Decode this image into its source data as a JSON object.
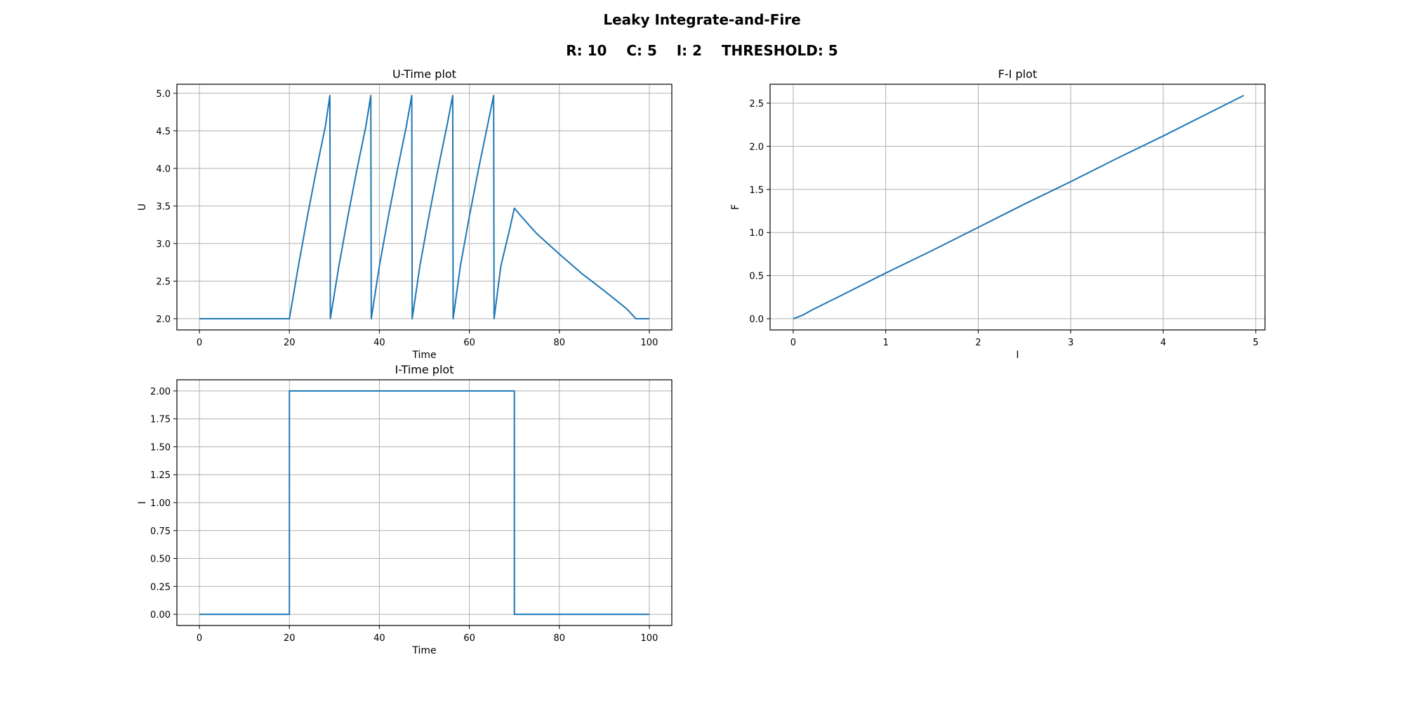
{
  "figure": {
    "title": "Leaky Integrate-and-Fire",
    "subtitle": "R: 10    C: 5    I: 2    THRESHOLD: 5"
  },
  "colors": {
    "series": "#1f77b4",
    "grid": "#b0b0b0"
  },
  "chart_data": [
    {
      "id": "u_time",
      "type": "line",
      "title": "U-Time plot",
      "xlabel": "Time",
      "ylabel": "U",
      "xlim": [
        -5,
        105
      ],
      "ylim": [
        1.85,
        5.12
      ],
      "xticks": [
        0,
        20,
        40,
        60,
        80,
        100
      ],
      "yticks": [
        2.0,
        2.5,
        3.0,
        3.5,
        4.0,
        4.5,
        5.0
      ],
      "ytick_labels": [
        "2.0",
        "2.5",
        "3.0",
        "3.5",
        "4.0",
        "4.5",
        "5.0"
      ],
      "grid": true,
      "series": [
        {
          "x": [
            0,
            20,
            22,
            24,
            26,
            28,
            29,
            29.1,
            31,
            33,
            35,
            37,
            38.1,
            38.2,
            40,
            42,
            44,
            46,
            47.2,
            47.3,
            49,
            51,
            53,
            55,
            56.3,
            56.4,
            58,
            60,
            62,
            64,
            65.4,
            65.5,
            67,
            69,
            70,
            72,
            75,
            80,
            85,
            90,
            95,
            97,
            100
          ],
          "y": [
            2.0,
            2.0,
            2.7,
            3.36,
            3.98,
            4.56,
            4.97,
            2.0,
            2.7,
            3.36,
            3.98,
            4.56,
            4.97,
            2.0,
            2.7,
            3.36,
            3.98,
            4.56,
            4.97,
            2.0,
            2.7,
            3.36,
            3.98,
            4.56,
            4.97,
            2.0,
            2.7,
            3.36,
            3.98,
            4.56,
            4.97,
            2.0,
            2.7,
            3.2,
            3.47,
            3.33,
            3.13,
            2.86,
            2.6,
            2.37,
            2.13,
            2.0,
            2.0
          ]
        }
      ]
    },
    {
      "id": "f_i",
      "type": "line",
      "title": "F-I plot",
      "xlabel": "I",
      "ylabel": "F",
      "xlim": [
        -0.25,
        5.1
      ],
      "ylim": [
        -0.13,
        2.72
      ],
      "xticks": [
        0,
        1,
        2,
        3,
        4,
        5
      ],
      "yticks": [
        0.0,
        0.5,
        1.0,
        1.5,
        2.0,
        2.5
      ],
      "ytick_labels": [
        "0.0",
        "0.5",
        "1.0",
        "1.5",
        "2.0",
        "2.5"
      ],
      "grid": true,
      "series": [
        {
          "x": [
            0,
            0.1,
            0.2,
            0.5,
            1,
            1.5,
            2,
            2.5,
            3,
            3.5,
            4,
            4.5,
            4.87
          ],
          "y": [
            0,
            0.04,
            0.1,
            0.26,
            0.53,
            0.79,
            1.06,
            1.33,
            1.59,
            1.86,
            2.12,
            2.39,
            2.59
          ]
        }
      ]
    },
    {
      "id": "i_time",
      "type": "line",
      "title": "I-Time plot",
      "xlabel": "Time",
      "ylabel": "I",
      "xlim": [
        -5,
        105
      ],
      "ylim": [
        -0.1,
        2.1
      ],
      "xticks": [
        0,
        20,
        40,
        60,
        80,
        100
      ],
      "yticks": [
        0.0,
        0.25,
        0.5,
        0.75,
        1.0,
        1.25,
        1.5,
        1.75,
        2.0
      ],
      "ytick_labels": [
        "0.00",
        "0.25",
        "0.50",
        "0.75",
        "1.00",
        "1.25",
        "1.50",
        "1.75",
        "2.00"
      ],
      "grid": true,
      "series": [
        {
          "x": [
            0,
            20,
            20.01,
            70,
            70.01,
            100
          ],
          "y": [
            0,
            0,
            2,
            2,
            0,
            0
          ]
        }
      ]
    }
  ]
}
